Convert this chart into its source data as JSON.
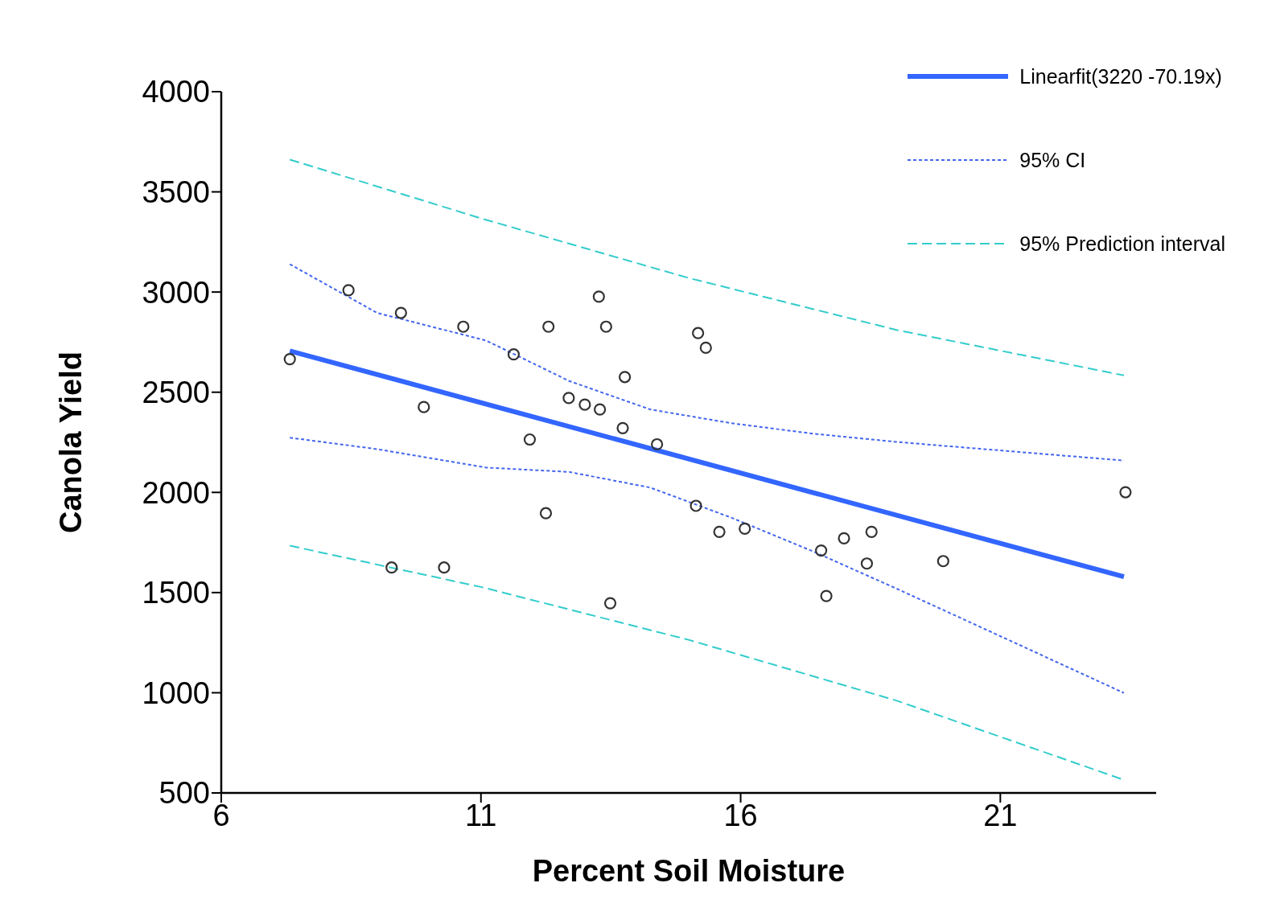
{
  "chart_data": {
    "type": "scatter",
    "xlabel": "Percent Soil Moisture",
    "ylabel": "Canola Yield",
    "xlim": [
      6,
      24
    ],
    "xticks": [
      6,
      11,
      16,
      21
    ],
    "ylim": [
      500,
      4000
    ],
    "yticks": [
      500,
      1000,
      1500,
      2000,
      2500,
      3000,
      3500,
      4000
    ],
    "grid": false,
    "legend": "top right",
    "series": [
      {
        "color": "#333333",
        "marker": "circle",
        "x": [
          7.32,
          8.45,
          9.46,
          10.66,
          9.9,
          9.28,
          10.29,
          11.63,
          11.94,
          12.3,
          12.25,
          12.69,
          13.0,
          13.29,
          13.27,
          13.41,
          13.77,
          13.73,
          13.49,
          14.39,
          15.18,
          15.33,
          15.14,
          15.59,
          16.08,
          17.55,
          17.65,
          17.99,
          18.43,
          18.52,
          19.9,
          23.41
        ],
        "values": [
          2665,
          3009,
          2896,
          2827,
          2426,
          1625,
          1625,
          2689,
          2264,
          2827,
          1896,
          2471,
          2438,
          2414,
          2977,
          2827,
          2576,
          2321,
          1447,
          2240,
          2795,
          2722,
          1933,
          1803,
          1819,
          1710,
          1483,
          1771,
          1645,
          1803,
          1657,
          2001
        ]
      },
      {
        "type": "line",
        "name": "Linearfit(3220  -70.19x)",
        "color": "#3366ff",
        "line_style": "solid",
        "x": [
          7.32,
          23.38
        ],
        "values": [
          2706,
          1579
        ]
      },
      {
        "type": "line",
        "name": "95% CI",
        "color": "#4466ee",
        "line_style": "dotted",
        "x": [
          7.32,
          9,
          11.1,
          12.7,
          14.26,
          15.83,
          17.4,
          19,
          20.5,
          23.38
        ],
        "values": [
          3139,
          2896,
          2758,
          2556,
          2414,
          2345,
          2293,
          2252,
          2220,
          2159
        ]
      },
      {
        "type": "line",
        "color": "#4466ee",
        "line_style": "dotted",
        "x": [
          7.32,
          9,
          11.1,
          12.7,
          14.26,
          15.83,
          17.4,
          19,
          20.5,
          23.38
        ],
        "values": [
          2273,
          2216,
          2124,
          2102,
          2024,
          1873,
          1705,
          1520,
          1342,
          999
        ]
      },
      {
        "type": "line",
        "name": "95% Prediction interval",
        "color": "#33cccc",
        "line_style": "dashed",
        "x": [
          7.32,
          11,
          15,
          19,
          23.38
        ],
        "values": [
          3661,
          3368,
          3070,
          2811,
          2584
        ]
      },
      {
        "type": "line",
        "color": "#33cccc",
        "line_style": "dashed",
        "x": [
          7.32,
          11,
          15,
          19,
          23.38
        ],
        "values": [
          1734,
          1528,
          1264,
          961,
          565
        ]
      }
    ]
  }
}
